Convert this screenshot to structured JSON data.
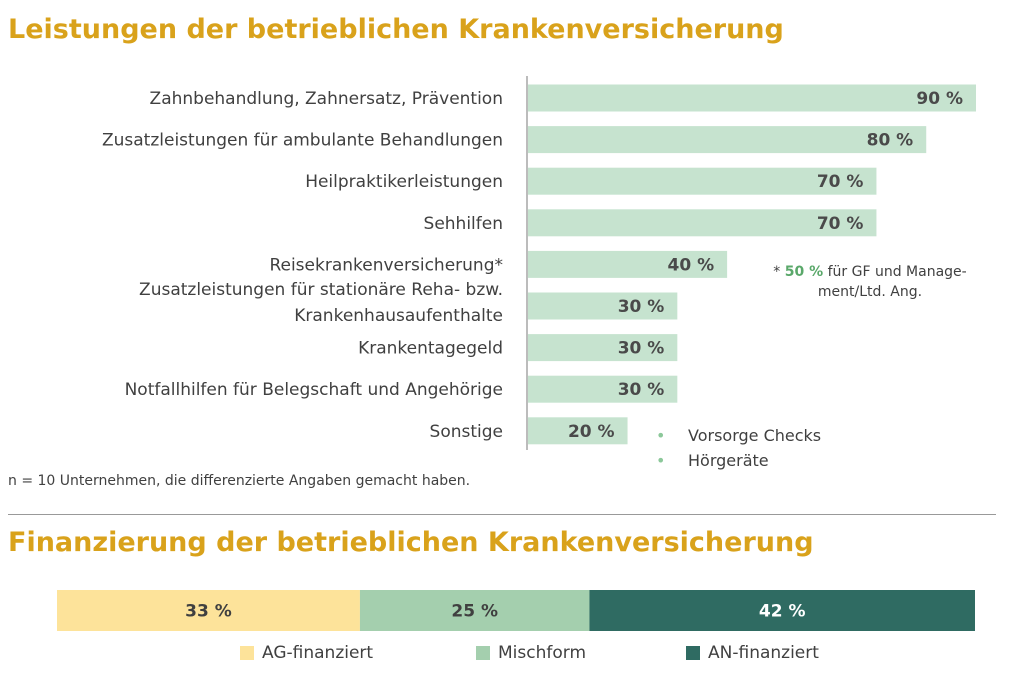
{
  "title_top": "Leistungen der betrieblichen Krankenversicherung",
  "title_bottom": "Finanzierung der betrieblichen Krankenversicherung",
  "footnote": "n = 10 Unternehmen, die differenzierte Angaben gemacht haben.",
  "note_asterisk": {
    "prefix": "* ",
    "highlight": "50 %",
    "text": " für GF und Manage-ment/Ltd. Ang."
  },
  "sonstige_items": [
    "Vorsorge Checks",
    "Hörgeräte"
  ],
  "colors": {
    "title": "#d9a21b",
    "bar": "#c6e3cf",
    "ag": "#fde39a",
    "misch": "#a4cfae",
    "an": "#2f6b62"
  },
  "chart_data": [
    {
      "type": "bar",
      "orientation": "horizontal",
      "title": "Leistungen der betrieblichen Krankenversicherung",
      "categories": [
        [
          "Zahnbehandlung, Zahnersatz, Prävention"
        ],
        [
          "Zusatzleistungen für ambulante Behandlungen"
        ],
        [
          "Heilpraktikerleistungen"
        ],
        [
          "Sehhilfen"
        ],
        [
          "Reisekrankenversicherung*"
        ],
        [
          "Zusatzleistungen für stationäre Reha- bzw.",
          "Krankenhausaufenthalte"
        ],
        [
          "Krankentagegeld"
        ],
        [
          "Notfallhilfen für Belegschaft und Angehörige"
        ],
        [
          "Sonstige"
        ]
      ],
      "values": [
        90,
        80,
        70,
        70,
        40,
        30,
        30,
        30,
        20
      ],
      "value_labels": [
        "90 %",
        "80 %",
        "70 %",
        "70 %",
        "40 %",
        "30 %",
        "30 %",
        "30 %",
        "20 %"
      ],
      "xlim": [
        0,
        90
      ],
      "xlabel": "",
      "ylabel": ""
    },
    {
      "type": "bar",
      "orientation": "horizontal-stacked",
      "title": "Finanzierung der betrieblichen Krankenversicherung",
      "series": [
        {
          "name": "AG-finanziert",
          "values": [
            33
          ],
          "label": "33 %"
        },
        {
          "name": "Mischform",
          "values": [
            25
          ],
          "label": "25 %"
        },
        {
          "name": "AN-finanziert",
          "values": [
            42
          ],
          "label": "42 %"
        }
      ],
      "legend": "bottom"
    }
  ]
}
